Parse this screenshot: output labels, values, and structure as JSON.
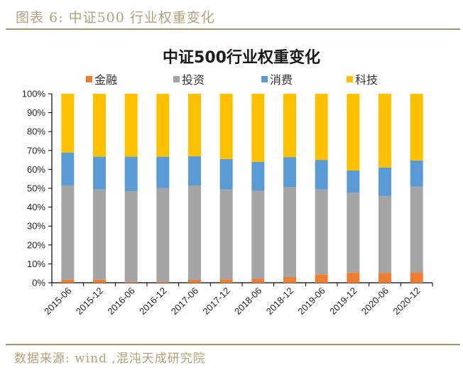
{
  "figure": {
    "caption": "图表 6: 中证500 行业权重变化",
    "source": "数据来源: wind ,混沌天成研究院"
  },
  "colors": {
    "rule": "#a7946b",
    "caption_text": "#b3a07c"
  },
  "chart_data": {
    "type": "bar",
    "stacked": true,
    "percent_stacked": true,
    "title": "中证500行业权重变化",
    "xlabel": "",
    "ylabel": "",
    "ylim": [
      0,
      100
    ],
    "yticks": [
      0,
      10,
      20,
      30,
      40,
      50,
      60,
      70,
      80,
      90,
      100
    ],
    "ytick_labels": [
      "0%",
      "10%",
      "20%",
      "30%",
      "40%",
      "50%",
      "60%",
      "70%",
      "80%",
      "90%",
      "100%"
    ],
    "grid": false,
    "legend_position": "top",
    "categories": [
      "2015-06",
      "2015-12",
      "2016-06",
      "2016-12",
      "2017-06",
      "2017-12",
      "2018-06",
      "2018-12",
      "2019-06",
      "2019-12",
      "2020-06",
      "2020-12"
    ],
    "series": [
      {
        "name": "金融",
        "color": "#ED7D31",
        "values": [
          1.5,
          1.6,
          0.5,
          0.5,
          1.5,
          1.8,
          2.1,
          3.0,
          4.4,
          5.4,
          5.2,
          5.5
        ]
      },
      {
        "name": "投资",
        "color": "#A5A5A5",
        "values": [
          50.0,
          47.8,
          48.0,
          49.6,
          50.0,
          47.6,
          46.5,
          47.6,
          45.0,
          42.3,
          40.7,
          45.4
        ]
      },
      {
        "name": "消费",
        "color": "#5B9BD5",
        "values": [
          17.4,
          17.3,
          18.2,
          16.6,
          15.4,
          16.1,
          15.4,
          15.9,
          15.6,
          11.7,
          15.1,
          13.8
        ]
      },
      {
        "name": "科技",
        "color": "#FFC000",
        "values": [
          31.1,
          33.3,
          33.3,
          33.3,
          33.1,
          34.5,
          36.0,
          33.5,
          35.0,
          40.6,
          39.0,
          35.3
        ]
      }
    ]
  }
}
